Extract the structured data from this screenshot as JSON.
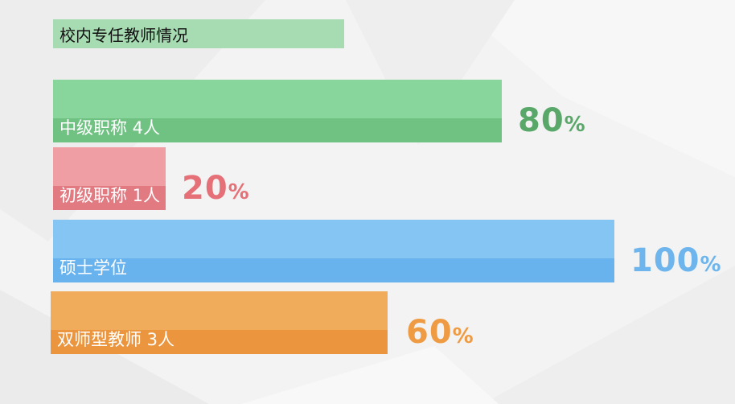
{
  "chart_data": {
    "type": "bar",
    "orientation": "horizontal",
    "title": "校内专任教师情况",
    "categories": [
      "中级职称 4人",
      "初级职称 1人",
      "硕士学位",
      "双师型教师 3人"
    ],
    "values": [
      80,
      20,
      100,
      60
    ],
    "value_labels": [
      "80",
      "20",
      "100",
      "60"
    ],
    "unit": "%",
    "xlim": [
      0,
      100
    ],
    "colors": [
      {
        "top": "#88d69b",
        "bottom": "#6fc282",
        "text": "#5aa869"
      },
      {
        "top": "#ef9ea3",
        "bottom": "#e27a82",
        "text": "#e57077"
      },
      {
        "top": "#85c5f4",
        "bottom": "#68b2ee",
        "text": "#6db5ec"
      },
      {
        "top": "#f0ab5b",
        "bottom": "#eb963f",
        "text": "#ee9b43"
      }
    ],
    "grid": false,
    "legend": "none"
  }
}
